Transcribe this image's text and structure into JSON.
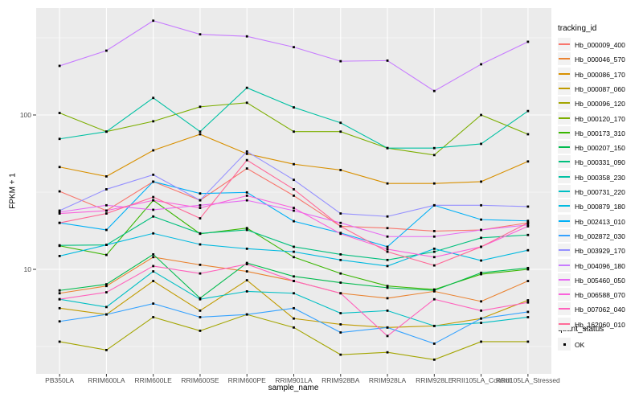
{
  "chart_data": {
    "type": "line",
    "title": "",
    "xlabel": "sample_name",
    "ylabel": "FPKM + 1",
    "y_scale": "log10",
    "y_ticks": [
      10,
      100
    ],
    "y_minor_gridlines": [
      3.162,
      31.62,
      316.2
    ],
    "ylim": [
      2.1,
      490
    ],
    "legend_position": "right",
    "point_marker": "black-square",
    "categories": [
      "PB350LA",
      "RRIM600LA",
      "RRIM600LE",
      "RRIM600SE",
      "RRIM600PE",
      "RRIM901LA",
      "RRIM928BA",
      "RRIM928LA",
      "RRIM928LE",
      "RRII105LA_Control",
      "RRII105LA_Stressed"
    ],
    "series": [
      {
        "name": "Hb_000009_400",
        "color": "#F8766D",
        "values": [
          32,
          24,
          37,
          28,
          45,
          30,
          19,
          18.5,
          17.7,
          18,
          20
        ]
      },
      {
        "name": "Hb_000046_570",
        "color": "#EA8331",
        "values": [
          7.0,
          7.8,
          12,
          10.7,
          9.7,
          8.4,
          7.0,
          6.5,
          7.2,
          6.2,
          8.4
        ]
      },
      {
        "name": "Hb_000086_170",
        "color": "#D89000",
        "values": [
          46,
          40,
          59,
          75,
          56,
          48,
          44,
          36,
          36,
          37,
          50
        ]
      },
      {
        "name": "Hb_000087_060",
        "color": "#C09B00",
        "values": [
          5.6,
          5.1,
          8.4,
          5.4,
          8.5,
          4.8,
          4.4,
          4.2,
          4.3,
          4.8,
          6.3
        ]
      },
      {
        "name": "Hb_000096_120",
        "color": "#A3A500",
        "values": [
          3.4,
          3.0,
          4.9,
          4.0,
          5.1,
          4.2,
          2.8,
          2.9,
          2.6,
          3.4,
          3.4
        ]
      },
      {
        "name": "Hb_000120_170",
        "color": "#7CAE00",
        "values": [
          103,
          78,
          91,
          113,
          120,
          78,
          78,
          61,
          55,
          100,
          75
        ]
      },
      {
        "name": "Hb_000173_310",
        "color": "#39B600",
        "values": [
          14.2,
          12.4,
          28,
          17,
          18.5,
          12,
          9.4,
          7.8,
          7.4,
          9.3,
          10
        ]
      },
      {
        "name": "Hb_000207_150",
        "color": "#00BB4E",
        "values": [
          7.3,
          8.0,
          12.5,
          6.5,
          11,
          9.0,
          8.2,
          7.6,
          7.3,
          9.5,
          10.2
        ]
      },
      {
        "name": "Hb_000331_090",
        "color": "#00BF7D",
        "values": [
          14.3,
          14.4,
          22,
          17.1,
          18,
          14,
          12.5,
          11.5,
          13,
          16,
          16.7
        ]
      },
      {
        "name": "Hb_000358_230",
        "color": "#00C1A3",
        "values": [
          70,
          78,
          129,
          78,
          150,
          112,
          89,
          61,
          61,
          65,
          106
        ]
      },
      {
        "name": "Hb_000731_220",
        "color": "#00BFC4",
        "values": [
          6.4,
          5.7,
          9.7,
          6.4,
          7.2,
          7.0,
          5.2,
          5.4,
          4.3,
          4.5,
          4.9
        ]
      },
      {
        "name": "Hb_000879_180",
        "color": "#00BAE0",
        "values": [
          12.2,
          14.4,
          17.1,
          14.5,
          13.6,
          13.0,
          11.5,
          10.5,
          13.6,
          11.4,
          13.3
        ]
      },
      {
        "name": "Hb_002413_010",
        "color": "#00B0F6",
        "values": [
          20,
          18,
          37,
          31,
          31.5,
          20.5,
          17.2,
          14,
          26,
          21,
          20.6
        ]
      },
      {
        "name": "Hb_002872_030",
        "color": "#35A2FF",
        "values": [
          4.6,
          5.1,
          6.0,
          4.9,
          5.1,
          5.6,
          3.9,
          4.2,
          3.3,
          4.8,
          5.3
        ]
      },
      {
        "name": "Hb_003929_170",
        "color": "#9590FF",
        "values": [
          24,
          33,
          41,
          28,
          58,
          38,
          23,
          22,
          26,
          26,
          25.5
        ]
      },
      {
        "name": "Hb_004096_180",
        "color": "#C77CFF",
        "values": [
          208,
          261,
          408,
          333,
          323,
          275,
          223,
          225,
          143,
          213,
          298
        ]
      },
      {
        "name": "Hb_005460_050",
        "color": "#E76BF3",
        "values": [
          23.5,
          26,
          24.3,
          26,
          28,
          24,
          20,
          16.3,
          16.3,
          18,
          19.4
        ]
      },
      {
        "name": "Hb_006588_070",
        "color": "#FA62DB",
        "values": [
          23,
          24,
          28,
          25,
          30,
          25,
          17,
          13.5,
          12,
          14,
          19
        ]
      },
      {
        "name": "Hb_007062_040",
        "color": "#FF62BC",
        "values": [
          6.4,
          7.1,
          10.5,
          9.4,
          10.8,
          8.4,
          7.0,
          3.7,
          6.4,
          5.4,
          6.1
        ]
      },
      {
        "name": "Hb_162060_010",
        "color": "#FF6A98",
        "values": [
          20,
          23,
          29.4,
          21.4,
          51,
          33,
          19,
          13,
          10.6,
          14,
          20
        ]
      }
    ]
  },
  "legend": {
    "tracking_title": "tracking_id",
    "quant_title": "quant_status",
    "quant_item": "OK"
  },
  "colors": {
    "panel_bg": "#EBEBEB",
    "gridline": "#FFFFFF",
    "legend_key_bg": "#F2F2F2",
    "tick_label": "#4D4D4D",
    "tick_mark": "#333333",
    "marker": "#000000"
  }
}
